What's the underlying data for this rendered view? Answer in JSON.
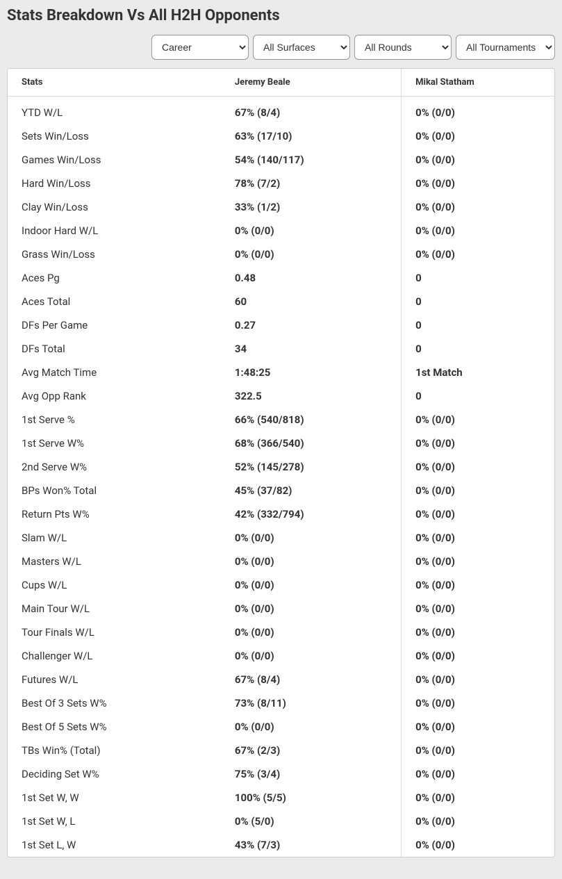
{
  "title": "Stats Breakdown Vs All H2H Opponents",
  "filters": {
    "period": "Career",
    "surface": "All Surfaces",
    "round": "All Rounds",
    "tournament": "All Tournaments"
  },
  "table": {
    "headers": {
      "stats": "Stats",
      "player1": "Jeremy Beale",
      "player2": "Mikal Statham"
    },
    "rows": [
      {
        "stat": "YTD W/L",
        "p1": "67% (8/4)",
        "p2": "0% (0/0)"
      },
      {
        "stat": "Sets Win/Loss",
        "p1": "63% (17/10)",
        "p2": "0% (0/0)"
      },
      {
        "stat": "Games Win/Loss",
        "p1": "54% (140/117)",
        "p2": "0% (0/0)"
      },
      {
        "stat": "Hard Win/Loss",
        "p1": "78% (7/2)",
        "p2": "0% (0/0)"
      },
      {
        "stat": "Clay Win/Loss",
        "p1": "33% (1/2)",
        "p2": "0% (0/0)"
      },
      {
        "stat": "Indoor Hard W/L",
        "p1": "0% (0/0)",
        "p2": "0% (0/0)"
      },
      {
        "stat": "Grass Win/Loss",
        "p1": "0% (0/0)",
        "p2": "0% (0/0)"
      },
      {
        "stat": "Aces Pg",
        "p1": "0.48",
        "p2": "0"
      },
      {
        "stat": "Aces Total",
        "p1": "60",
        "p2": "0"
      },
      {
        "stat": "DFs Per Game",
        "p1": "0.27",
        "p2": "0"
      },
      {
        "stat": "DFs Total",
        "p1": "34",
        "p2": "0"
      },
      {
        "stat": "Avg Match Time",
        "p1": "1:48:25",
        "p2": "1st Match"
      },
      {
        "stat": "Avg Opp Rank",
        "p1": "322.5",
        "p2": "0"
      },
      {
        "stat": "1st Serve %",
        "p1": "66% (540/818)",
        "p2": "0% (0/0)"
      },
      {
        "stat": "1st Serve W%",
        "p1": "68% (366/540)",
        "p2": "0% (0/0)"
      },
      {
        "stat": "2nd Serve W%",
        "p1": "52% (145/278)",
        "p2": "0% (0/0)"
      },
      {
        "stat": "BPs Won% Total",
        "p1": "45% (37/82)",
        "p2": "0% (0/0)"
      },
      {
        "stat": "Return Pts W%",
        "p1": "42% (332/794)",
        "p2": "0% (0/0)"
      },
      {
        "stat": "Slam W/L",
        "p1": "0% (0/0)",
        "p2": "0% (0/0)"
      },
      {
        "stat": "Masters W/L",
        "p1": "0% (0/0)",
        "p2": "0% (0/0)"
      },
      {
        "stat": "Cups W/L",
        "p1": "0% (0/0)",
        "p2": "0% (0/0)"
      },
      {
        "stat": "Main Tour W/L",
        "p1": "0% (0/0)",
        "p2": "0% (0/0)"
      },
      {
        "stat": "Tour Finals W/L",
        "p1": "0% (0/0)",
        "p2": "0% (0/0)"
      },
      {
        "stat": "Challenger W/L",
        "p1": "0% (0/0)",
        "p2": "0% (0/0)"
      },
      {
        "stat": "Futures W/L",
        "p1": "67% (8/4)",
        "p2": "0% (0/0)"
      },
      {
        "stat": "Best Of 3 Sets W%",
        "p1": "73% (8/11)",
        "p2": "0% (0/0)"
      },
      {
        "stat": "Best Of 5 Sets W%",
        "p1": "0% (0/0)",
        "p2": "0% (0/0)"
      },
      {
        "stat": "TBs Win% (Total)",
        "p1": "67% (2/3)",
        "p2": "0% (0/0)"
      },
      {
        "stat": "Deciding Set W%",
        "p1": "75% (3/4)",
        "p2": "0% (0/0)"
      },
      {
        "stat": "1st Set W, W",
        "p1": "100% (5/5)",
        "p2": "0% (0/0)"
      },
      {
        "stat": "1st Set W, L",
        "p1": "0% (5/0)",
        "p2": "0% (0/0)"
      },
      {
        "stat": "1st Set L, W",
        "p1": "43% (7/3)",
        "p2": "0% (0/0)"
      }
    ]
  },
  "colors": {
    "background": "#ebebeb",
    "card_bg": "#ffffff",
    "border": "#cccccc",
    "text": "#333333"
  }
}
